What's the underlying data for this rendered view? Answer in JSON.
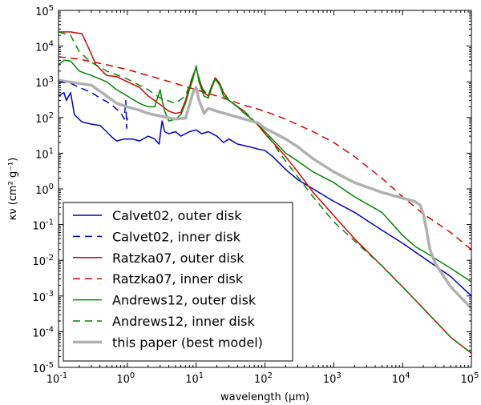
{
  "chart_data": {
    "type": "line",
    "title": "",
    "xlabel": "wavelength (μm)",
    "ylabel": "κν (cm² g⁻¹)",
    "xscale": "log",
    "yscale": "log",
    "xlim": [
      0.1,
      100000
    ],
    "ylim": [
      1e-05,
      100000
    ],
    "x_tick_labels": [
      "10-1",
      "100",
      "101",
      "102",
      "103",
      "104",
      "105"
    ],
    "y_tick_labels": [
      "10-5",
      "10-4",
      "10-3",
      "10-2",
      "10-1",
      "100",
      "101",
      "102",
      "103",
      "104",
      "105"
    ],
    "legend_position": "lower-left",
    "series": [
      {
        "name": "Calvet02, outer disk",
        "color": "#0000cc",
        "dash": "solid",
        "width": 1.5,
        "points": [
          [
            0.1,
            400
          ],
          [
            0.12,
            500
          ],
          [
            0.13,
            300
          ],
          [
            0.15,
            500
          ],
          [
            0.17,
            120
          ],
          [
            0.22,
            75
          ],
          [
            0.3,
            65
          ],
          [
            0.4,
            60
          ],
          [
            0.5,
            40
          ],
          [
            0.6,
            28
          ],
          [
            0.7,
            22
          ],
          [
            0.9,
            25
          ],
          [
            1.2,
            25
          ],
          [
            1.5,
            22
          ],
          [
            2,
            30
          ],
          [
            2.5,
            25
          ],
          [
            2.9,
            18
          ],
          [
            3.2,
            80
          ],
          [
            3.5,
            40
          ],
          [
            4,
            35
          ],
          [
            5,
            40
          ],
          [
            6,
            30
          ],
          [
            8,
            40
          ],
          [
            10,
            45
          ],
          [
            12,
            35
          ],
          [
            15,
            40
          ],
          [
            20,
            30
          ],
          [
            25,
            20
          ],
          [
            30,
            25
          ],
          [
            40,
            18
          ],
          [
            60,
            15
          ],
          [
            80,
            13
          ],
          [
            100,
            12
          ],
          [
            130,
            8
          ],
          [
            200,
            3.5
          ],
          [
            300,
            1.8
          ],
          [
            500,
            1
          ],
          [
            1000,
            0.45
          ],
          [
            2000,
            0.22
          ],
          [
            5000,
            0.07
          ],
          [
            10000,
            0.03
          ],
          [
            20000,
            0.012
          ],
          [
            50000,
            0.0035
          ],
          [
            100000,
            0.001
          ]
        ]
      },
      {
        "name": "Calvet02, inner disk",
        "color": "#0000cc",
        "dash": "dashed",
        "width": 1.5,
        "points": [
          [
            0.1,
            1000
          ],
          [
            0.15,
            900
          ],
          [
            0.2,
            700
          ],
          [
            0.3,
            500
          ],
          [
            0.4,
            350
          ],
          [
            0.5,
            280
          ],
          [
            0.6,
            220
          ],
          [
            0.7,
            170
          ],
          [
            0.8,
            140
          ],
          [
            0.9,
            90
          ],
          [
            0.95,
            300
          ],
          [
            0.98,
            50
          ],
          [
            1.0,
            100
          ]
        ]
      },
      {
        "name": "Ratzka07, outer disk",
        "color": "#dd0000",
        "dash": "solid",
        "width": 1.5,
        "points": [
          [
            0.1,
            25000
          ],
          [
            0.15,
            25000
          ],
          [
            0.22,
            22000
          ],
          [
            0.28,
            8000
          ],
          [
            0.35,
            3000
          ],
          [
            0.5,
            1500
          ],
          [
            0.7,
            1400
          ],
          [
            1,
            1000
          ],
          [
            1.5,
            700
          ],
          [
            2,
            400
          ],
          [
            3,
            230
          ],
          [
            4,
            150
          ],
          [
            5,
            130
          ],
          [
            6,
            140
          ],
          [
            7,
            300
          ],
          [
            8,
            700
          ],
          [
            9,
            1500
          ],
          [
            10,
            2500
          ],
          [
            11,
            1200
          ],
          [
            13,
            500
          ],
          [
            15,
            400
          ],
          [
            17,
            800
          ],
          [
            19,
            1300
          ],
          [
            22,
            900
          ],
          [
            25,
            500
          ],
          [
            30,
            300
          ],
          [
            40,
            200
          ],
          [
            50,
            150
          ],
          [
            60,
            100
          ],
          [
            80,
            60
          ],
          [
            100,
            35
          ],
          [
            150,
            15
          ],
          [
            200,
            8
          ],
          [
            300,
            3
          ],
          [
            500,
            0.8
          ],
          [
            1000,
            0.18
          ],
          [
            2000,
            0.04
          ],
          [
            5000,
            0.007
          ],
          [
            10000,
            0.0018
          ],
          [
            20000,
            0.00045
          ],
          [
            50000,
            7e-05
          ],
          [
            100000,
            2.5e-05
          ]
        ]
      },
      {
        "name": "Ratzka07, inner disk",
        "color": "#dd0000",
        "dash": "dashed",
        "width": 1.5,
        "points": [
          [
            0.1,
            5000
          ],
          [
            0.2,
            4300
          ],
          [
            0.5,
            3000
          ],
          [
            1,
            2200
          ],
          [
            2,
            1500
          ],
          [
            5,
            900
          ],
          [
            10,
            600
          ],
          [
            20,
            400
          ],
          [
            50,
            220
          ],
          [
            100,
            150
          ],
          [
            200,
            90
          ],
          [
            500,
            40
          ],
          [
            1000,
            20
          ],
          [
            2000,
            8
          ],
          [
            5000,
            2
          ],
          [
            10000,
            0.6
          ],
          [
            20000,
            0.2
          ],
          [
            50000,
            0.06
          ],
          [
            100000,
            0.02
          ]
        ]
      },
      {
        "name": "Andrews12, outer disk",
        "color": "#008800",
        "dash": "solid",
        "width": 1.5,
        "points": [
          [
            0.1,
            3000
          ],
          [
            0.12,
            4000
          ],
          [
            0.15,
            3800
          ],
          [
            0.2,
            2000
          ],
          [
            0.3,
            1500
          ],
          [
            0.5,
            1000
          ],
          [
            0.7,
            600
          ],
          [
            1,
            400
          ],
          [
            1.5,
            250
          ],
          [
            2,
            200
          ],
          [
            2.5,
            200
          ],
          [
            3,
            600
          ],
          [
            3.2,
            300
          ],
          [
            3.5,
            150
          ],
          [
            4,
            80
          ],
          [
            5,
            90
          ],
          [
            6,
            120
          ],
          [
            7,
            250
          ],
          [
            8,
            600
          ],
          [
            9,
            1200
          ],
          [
            10,
            2800
          ],
          [
            11,
            1000
          ],
          [
            13,
            400
          ],
          [
            15,
            350
          ],
          [
            17,
            700
          ],
          [
            19,
            1200
          ],
          [
            22,
            800
          ],
          [
            25,
            400
          ],
          [
            30,
            300
          ],
          [
            40,
            200
          ],
          [
            50,
            130
          ],
          [
            70,
            80
          ],
          [
            100,
            40
          ],
          [
            150,
            18
          ],
          [
            200,
            10
          ],
          [
            300,
            6
          ],
          [
            500,
            3
          ],
          [
            1000,
            1.5
          ],
          [
            2000,
            0.6
          ],
          [
            5000,
            0.22
          ],
          [
            10000,
            0.05
          ],
          [
            15000,
            0.025
          ],
          [
            20000,
            0.018
          ],
          [
            50000,
            0.006
          ],
          [
            100000,
            0.0025
          ]
        ]
      },
      {
        "name": "Andrews12, inner disk",
        "color": "#008800",
        "dash": "dashed",
        "width": 1.5,
        "points": [
          [
            0.1,
            25000
          ],
          [
            0.15,
            20000
          ],
          [
            0.2,
            7000
          ],
          [
            0.3,
            3500
          ],
          [
            0.5,
            2000
          ],
          [
            1,
            1200
          ],
          [
            2,
            600
          ],
          [
            3,
            350
          ],
          [
            5,
            250
          ],
          [
            7,
            400
          ],
          [
            9,
            1500
          ],
          [
            10,
            2500
          ],
          [
            12,
            700
          ],
          [
            15,
            400
          ],
          [
            17,
            800
          ],
          [
            19,
            1200
          ],
          [
            22,
            800
          ],
          [
            30,
            300
          ],
          [
            50,
            150
          ],
          [
            100,
            40
          ],
          [
            200,
            6
          ],
          [
            500,
            0.6
          ],
          [
            1000,
            0.12
          ],
          [
            2000,
            0.035
          ],
          [
            5000,
            0.007
          ],
          [
            10000,
            0.0018
          ],
          [
            20000,
            0.00045
          ],
          [
            50000,
            7e-05
          ],
          [
            100000,
            2.5e-05
          ]
        ]
      },
      {
        "name": "this paper (best model)",
        "color": "#b0b0b0",
        "dash": "solid",
        "width": 3.5,
        "points": [
          [
            0.1,
            1100
          ],
          [
            0.2,
            900
          ],
          [
            0.3,
            800
          ],
          [
            0.5,
            400
          ],
          [
            0.7,
            250
          ],
          [
            1,
            200
          ],
          [
            1.5,
            160
          ],
          [
            2,
            130
          ],
          [
            3,
            110
          ],
          [
            5,
            90
          ],
          [
            7,
            95
          ],
          [
            9,
            500
          ],
          [
            10,
            700
          ],
          [
            11,
            300
          ],
          [
            12,
            200
          ],
          [
            13,
            130
          ],
          [
            15,
            180
          ],
          [
            20,
            150
          ],
          [
            30,
            120
          ],
          [
            50,
            90
          ],
          [
            80,
            70
          ],
          [
            100,
            50
          ],
          [
            200,
            25
          ],
          [
            300,
            15
          ],
          [
            500,
            7
          ],
          [
            1000,
            3
          ],
          [
            2000,
            1.5
          ],
          [
            5000,
            0.8
          ],
          [
            10000,
            0.55
          ],
          [
            15000,
            0.45
          ],
          [
            18000,
            0.35
          ],
          [
            20000,
            0.2
          ],
          [
            22000,
            0.08
          ],
          [
            25000,
            0.02
          ],
          [
            30000,
            0.008
          ],
          [
            50000,
            0.0018
          ],
          [
            100000,
            0.00045
          ]
        ]
      }
    ]
  }
}
